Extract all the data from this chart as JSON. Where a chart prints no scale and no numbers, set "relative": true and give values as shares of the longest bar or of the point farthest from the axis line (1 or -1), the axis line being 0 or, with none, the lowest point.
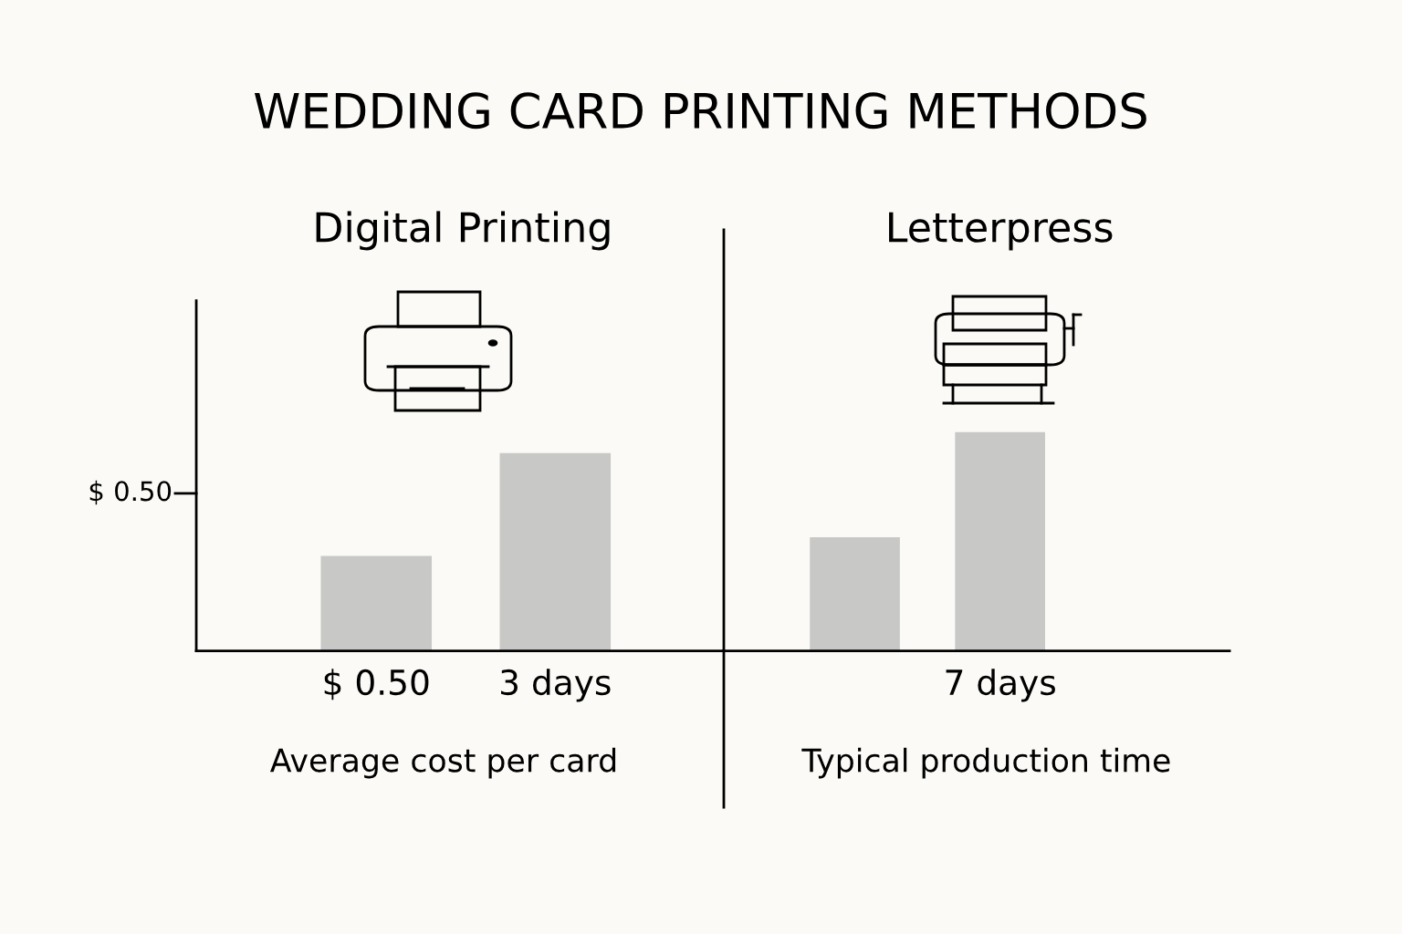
{
  "chart_data": [
    {
      "type": "bar",
      "title": "WEDDING CARD PRINTING METHODS",
      "subtitle": "Digital Printing",
      "relative": true,
      "categories": [
        "$ 0.50",
        "3 days"
      ],
      "values": [
        0.48,
        1
      ],
      "color": "#c8c8c6",
      "xlabel": "Average cost per card",
      "annotations": [
        "$ 0.50"
      ],
      "grid": false,
      "legend": false
    },
    {
      "type": "bar",
      "subtitle": "Letterpress",
      "relative": true,
      "categories": [
        null,
        "7 days"
      ],
      "values": [
        0.52,
        1
      ],
      "color": "#c8c8c6",
      "xlabel": "Typical production time",
      "grid": false,
      "legend": false
    }
  ]
}
